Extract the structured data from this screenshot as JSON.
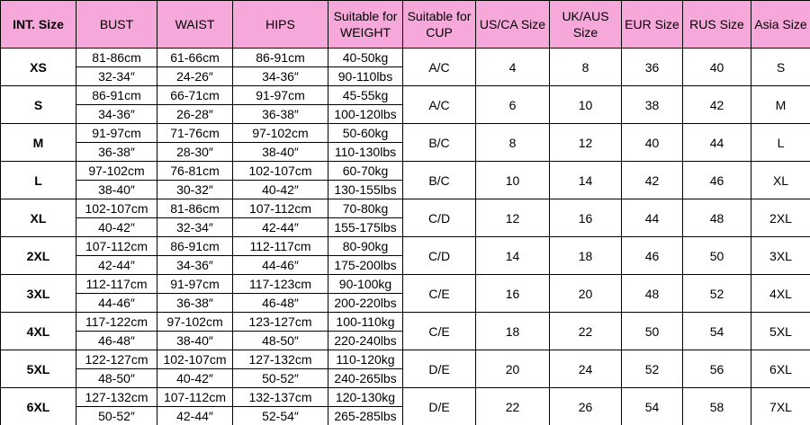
{
  "table": {
    "headers": [
      "INT. Size",
      "BUST",
      "WAIST",
      "HIPS",
      "Suitable for WEIGHT",
      "Suitable for CUP",
      "US/CA Size",
      "UK/AUS Size",
      "EUR Size",
      "RUS Size",
      "Asia Size"
    ],
    "rows": [
      {
        "size": "XS",
        "bust": [
          "81-86cm",
          "32-34″"
        ],
        "waist": [
          "61-66cm",
          "24-26″"
        ],
        "hips": [
          "86-91cm",
          "34-36″"
        ],
        "weight": [
          "40-50kg",
          "90-110lbs"
        ],
        "cup": "A/C",
        "us": 4,
        "uk": 8,
        "eur": 36,
        "rus": 40,
        "asia": "S"
      },
      {
        "size": "S",
        "bust": [
          "86-91cm",
          "34-36″"
        ],
        "waist": [
          "66-71cm",
          "26-28″"
        ],
        "hips": [
          "91-97cm",
          "36-38″"
        ],
        "weight": [
          "45-55kg",
          "100-120lbs"
        ],
        "cup": "A/C",
        "us": 6,
        "uk": 10,
        "eur": 38,
        "rus": 42,
        "asia": "M"
      },
      {
        "size": "M",
        "bust": [
          "91-97cm",
          "36-38″"
        ],
        "waist": [
          "71-76cm",
          "28-30″"
        ],
        "hips": [
          "97-102cm",
          "38-40″"
        ],
        "weight": [
          "50-60kg",
          "110-130lbs"
        ],
        "cup": "B/C",
        "us": 8,
        "uk": 12,
        "eur": 40,
        "rus": 44,
        "asia": "L"
      },
      {
        "size": "L",
        "bust": [
          "97-102cm",
          "38-40″"
        ],
        "waist": [
          "76-81cm",
          "30-32″"
        ],
        "hips": [
          "102-107cm",
          "40-42″"
        ],
        "weight": [
          "60-70kg",
          "130-155lbs"
        ],
        "cup": "B/C",
        "us": 10,
        "uk": 14,
        "eur": 42,
        "rus": 46,
        "asia": "XL"
      },
      {
        "size": "XL",
        "bust": [
          "102-107cm",
          "40-42″"
        ],
        "waist": [
          "81-86cm",
          "32-34″"
        ],
        "hips": [
          "107-112cm",
          "42-44″"
        ],
        "weight": [
          "70-80kg",
          "155-175lbs"
        ],
        "cup": "C/D",
        "us": 12,
        "uk": 16,
        "eur": 44,
        "rus": 48,
        "asia": "2XL"
      },
      {
        "size": "2XL",
        "bust": [
          "107-112cm",
          "42-44″"
        ],
        "waist": [
          "86-91cm",
          "34-36″"
        ],
        "hips": [
          "112-117cm",
          "44-46″"
        ],
        "weight": [
          "80-90kg",
          "175-200lbs"
        ],
        "cup": "C/D",
        "us": 14,
        "uk": 18,
        "eur": 46,
        "rus": 50,
        "asia": "3XL"
      },
      {
        "size": "3XL",
        "bust": [
          "112-117cm",
          "44-46″"
        ],
        "waist": [
          "91-97cm",
          "36-38″"
        ],
        "hips": [
          "117-123cm",
          "46-48″"
        ],
        "weight": [
          "90-100kg",
          "200-220lbs"
        ],
        "cup": "C/E",
        "us": 16,
        "uk": 20,
        "eur": 48,
        "rus": 52,
        "asia": "4XL"
      },
      {
        "size": "4XL",
        "bust": [
          "117-122cm",
          "46-48″"
        ],
        "waist": [
          "97-102cm",
          "38-40″"
        ],
        "hips": [
          "123-127cm",
          "48-50″"
        ],
        "weight": [
          "100-110kg",
          "220-240lbs"
        ],
        "cup": "C/E",
        "us": 18,
        "uk": 22,
        "eur": 50,
        "rus": 54,
        "asia": "5XL"
      },
      {
        "size": "5XL",
        "bust": [
          "122-127cm",
          "48-50″"
        ],
        "waist": [
          "102-107cm",
          "40-42″"
        ],
        "hips": [
          "127-132cm",
          "50-52″"
        ],
        "weight": [
          "110-120kg",
          "240-265lbs"
        ],
        "cup": "D/E",
        "us": 20,
        "uk": 24,
        "eur": 52,
        "rus": 56,
        "asia": "6XL"
      },
      {
        "size": "6XL",
        "bust": [
          "127-132cm",
          "50-52″"
        ],
        "waist": [
          "107-112cm",
          "42-44″"
        ],
        "hips": [
          "132-137cm",
          "52-54″"
        ],
        "weight": [
          "120-130kg",
          "265-285lbs"
        ],
        "cup": "D/E",
        "us": 22,
        "uk": 26,
        "eur": 54,
        "rus": 58,
        "asia": "7XL"
      }
    ]
  }
}
